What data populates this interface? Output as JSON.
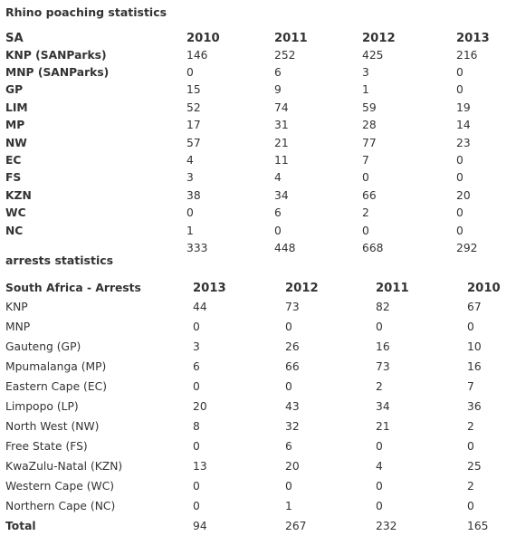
{
  "poaching": {
    "title": "Rhino poaching statistics",
    "header": [
      "SA",
      "2010",
      "2011",
      "2012",
      "2013"
    ],
    "rows": [
      [
        "KNP (SANParks)",
        "146",
        "252",
        "425",
        "216"
      ],
      [
        "MNP (SANParks)",
        "0",
        "6",
        "3",
        "0"
      ],
      [
        "GP",
        "15",
        "9",
        "1",
        "0"
      ],
      [
        "LIM",
        "52",
        "74",
        "59",
        "19"
      ],
      [
        "MP",
        "17",
        "31",
        "28",
        "14"
      ],
      [
        "NW",
        "57",
        "21",
        "77",
        "23"
      ],
      [
        "EC",
        "4",
        "11",
        "7",
        "0"
      ],
      [
        "FS",
        "3",
        "4",
        "0",
        "0"
      ],
      [
        "KZN",
        "38",
        "34",
        "66",
        "20"
      ],
      [
        "WC",
        "0",
        "6",
        "2",
        "0"
      ],
      [
        "NC",
        "1",
        "0",
        "0",
        "0"
      ]
    ],
    "totals": [
      "",
      "333",
      "448",
      "668",
      "292"
    ]
  },
  "arrests": {
    "title": "arrests statistics",
    "header": [
      "South Africa - Arrests",
      "2013",
      "2012",
      "2011",
      "2010"
    ],
    "rows": [
      [
        "KNP",
        "44",
        "73",
        "82",
        "67"
      ],
      [
        "MNP",
        "0",
        "0",
        "0",
        "0"
      ],
      [
        "Gauteng (GP)",
        "3",
        "26",
        "16",
        "10"
      ],
      [
        "Mpumalanga (MP)",
        "6",
        "66",
        "73",
        "16"
      ],
      [
        "Eastern Cape (EC)",
        "0",
        "0",
        "2",
        "7"
      ],
      [
        "Limpopo (LP)",
        "20",
        "43",
        "34",
        "36"
      ],
      [
        "North West (NW)",
        "8",
        "32",
        "21",
        "2"
      ],
      [
        "Free State (FS)",
        "0",
        "6",
        "0",
        "0"
      ],
      [
        "KwaZulu-Natal (KZN)",
        "13",
        "20",
        "4",
        "25"
      ],
      [
        "Western Cape (WC)",
        "0",
        "0",
        "0",
        "2"
      ],
      [
        "Northern Cape (NC)",
        "0",
        "1",
        "0",
        "0"
      ]
    ],
    "totals": [
      "Total",
      "94",
      "267",
      "232",
      "165"
    ]
  }
}
